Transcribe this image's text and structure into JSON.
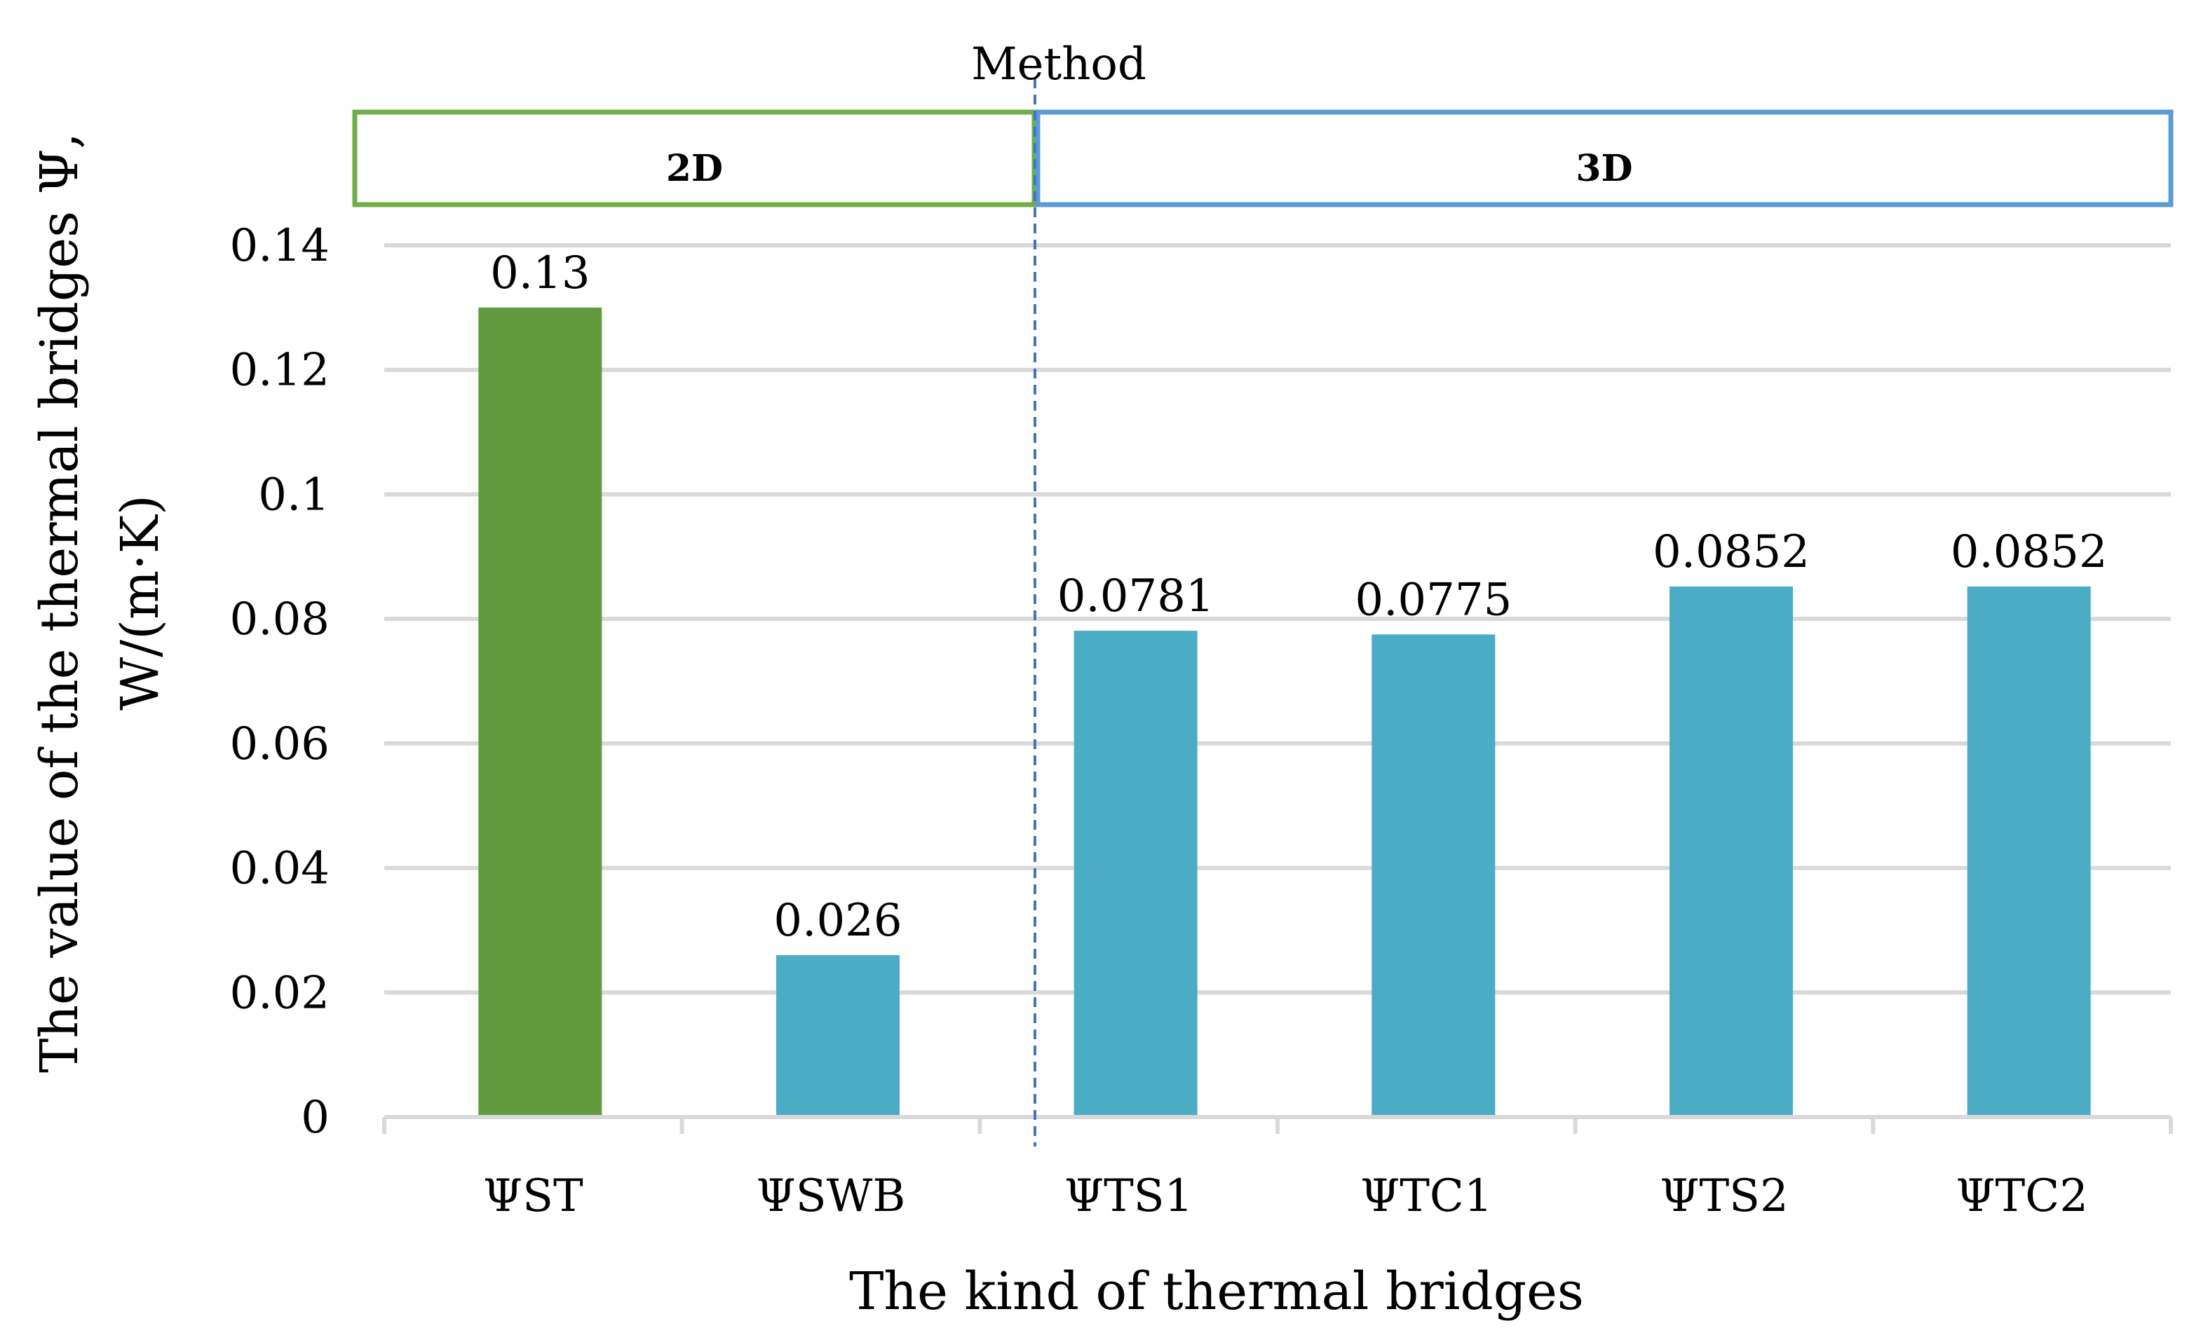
{
  "chart_data": {
    "type": "bar",
    "title": "",
    "categories": [
      "ΨST",
      "ΨSWB",
      "ΨTS1",
      "ΨTC1",
      "ΨTS2",
      "ΨTC2"
    ],
    "values": [
      0.13,
      0.026,
      0.0781,
      0.0775,
      0.0852,
      0.0852
    ],
    "data_labels": [
      "0.13",
      "0.026",
      "0.0781",
      "0.0775",
      "0.0852",
      "0.0852"
    ],
    "bar_colors": [
      "#629a3f",
      "#4bacc6",
      "#4bacc6",
      "#4bacc6",
      "#4bacc6",
      "#4bacc6"
    ],
    "xlabel": "The kind of thermal bridges",
    "ylabel_lines": [
      "The value of the thermal bridges Ψ,",
      "W/(m·K)"
    ],
    "ylim": [
      0,
      0.14
    ],
    "yticks": [
      0,
      0.02,
      0.04,
      0.06,
      0.08,
      0.1,
      0.12,
      0.14
    ],
    "ytick_labels": [
      "0",
      "0.02",
      "0.04",
      "0.06",
      "0.08",
      "0.1",
      "0.12",
      "0.14"
    ],
    "grid": true,
    "legend": "none",
    "method_header": {
      "title": "Method",
      "groups": [
        {
          "label": "2D",
          "color": "#70ad47",
          "from_category": 0,
          "to_category": 1
        },
        {
          "label": "3D",
          "color": "#5b9bd5",
          "from_category": 2,
          "to_category": 5
        }
      ],
      "divider_color": "#4472c4"
    }
  }
}
